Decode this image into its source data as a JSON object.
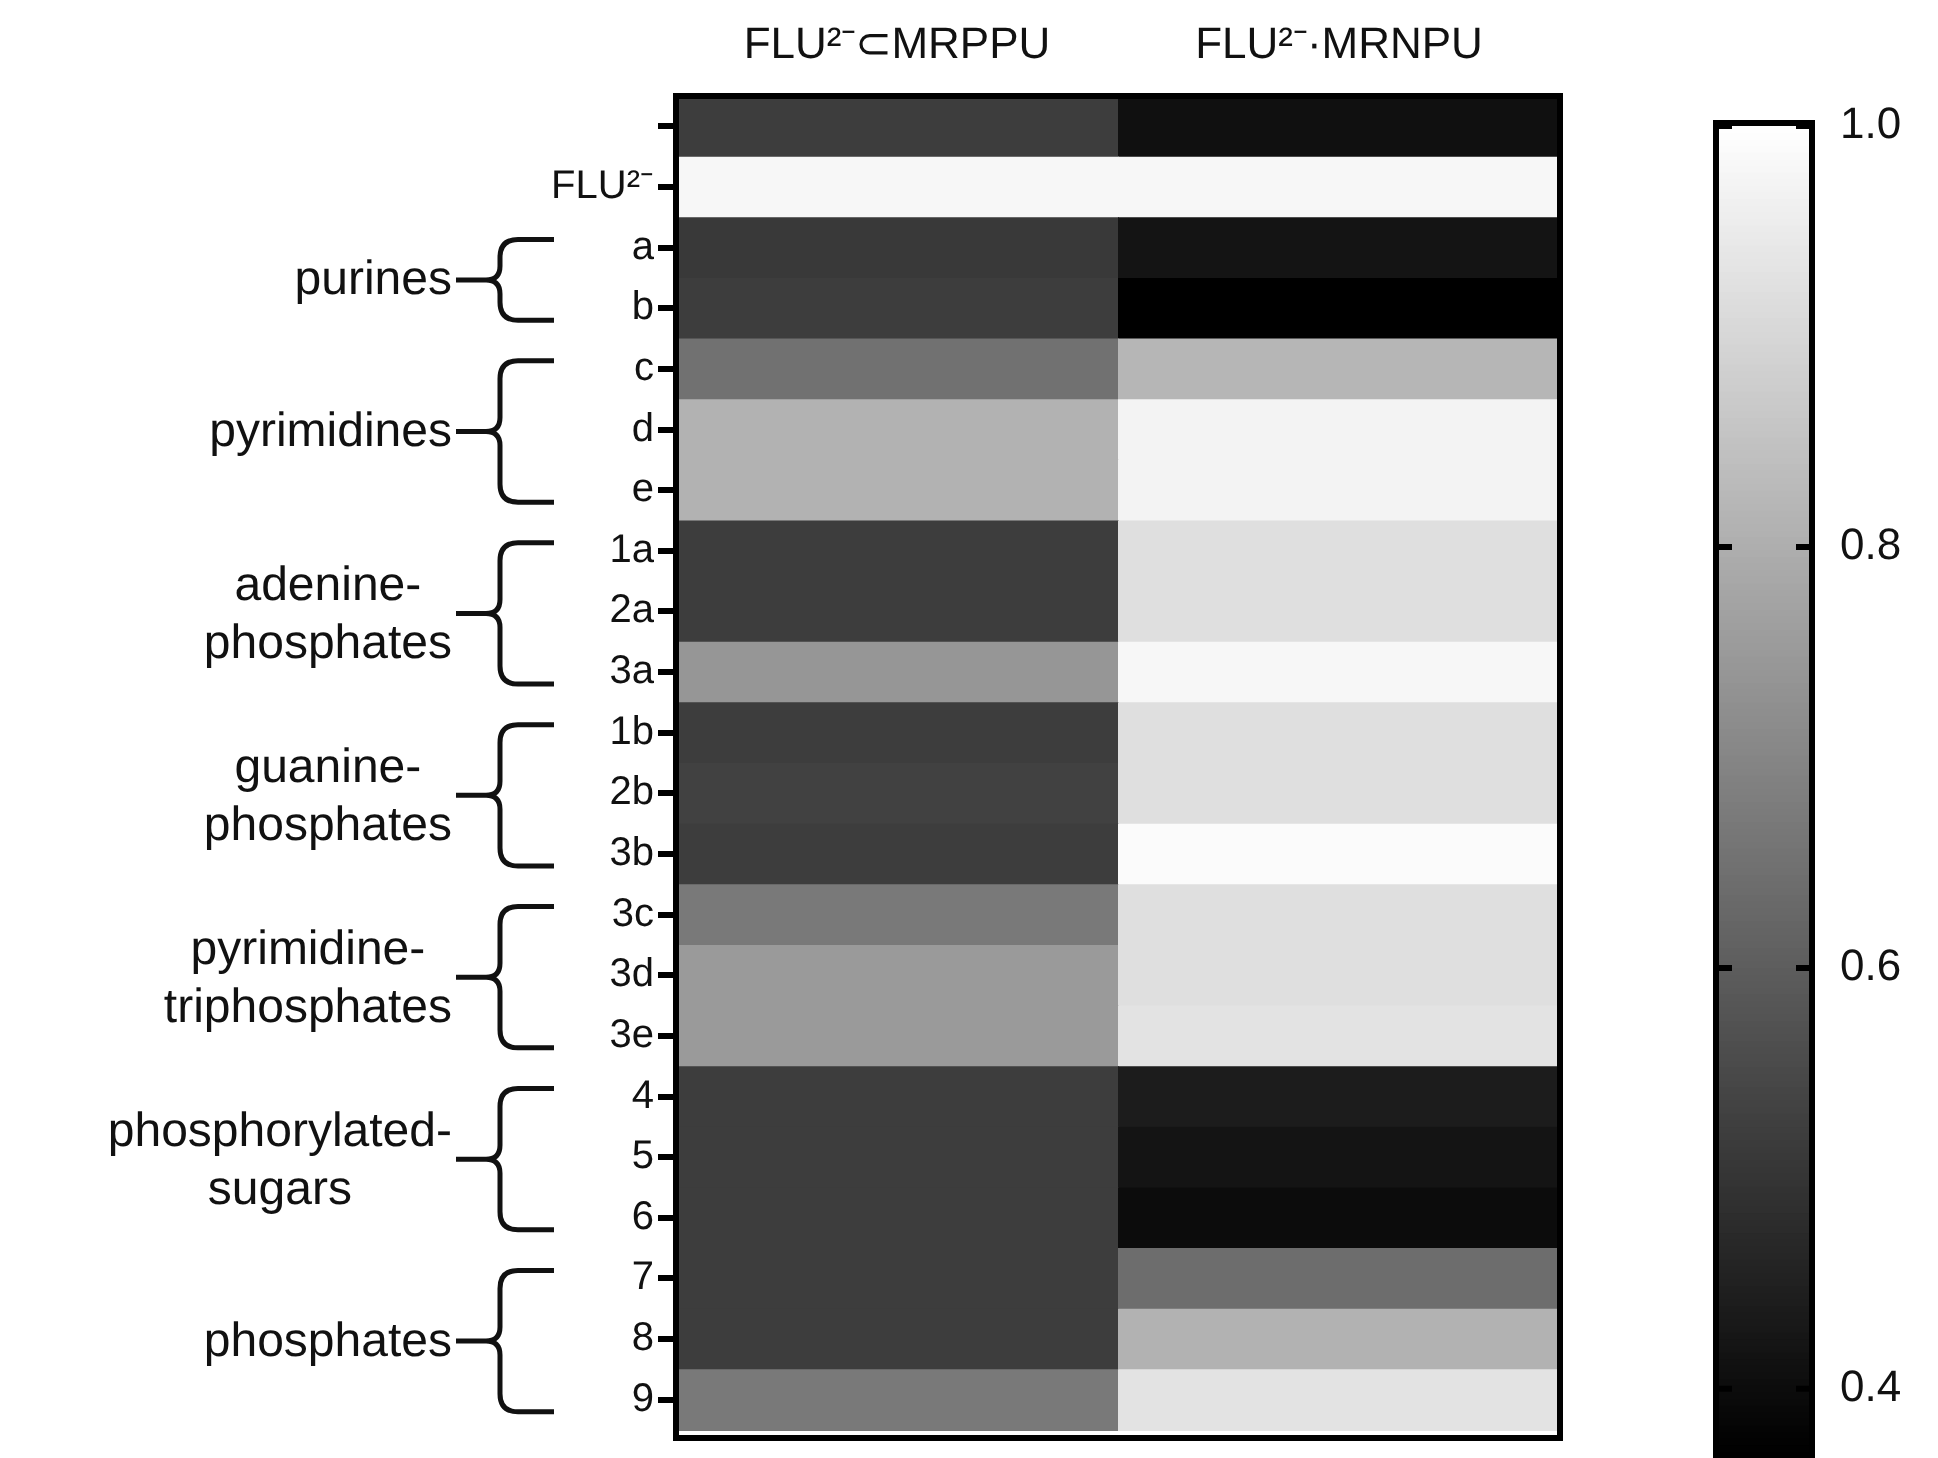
{
  "chart_data": {
    "type": "heatmap",
    "categories": [
      "FLU²⁻⊂MRPPU",
      "FLU²⁻·MRNPU"
    ],
    "y_categories": [
      null,
      "FLU²⁻",
      "a",
      "b",
      "c",
      "d",
      "e",
      "1a",
      "2a",
      "3a",
      "1b",
      "2b",
      "3b",
      "3c",
      "3d",
      "3e",
      "4",
      "5",
      "6",
      "7",
      "8",
      "9"
    ],
    "cells": [
      [
        0.52,
        0.41
      ],
      [
        0.98,
        0.98
      ],
      [
        0.51,
        0.42
      ],
      [
        0.52,
        0.37
      ],
      [
        0.65,
        0.82
      ],
      [
        0.81,
        0.97
      ],
      [
        0.81,
        0.97
      ],
      [
        0.52,
        0.92
      ],
      [
        0.52,
        0.92
      ],
      [
        0.74,
        0.98
      ],
      [
        0.52,
        0.92
      ],
      [
        0.53,
        0.92
      ],
      [
        0.52,
        0.99
      ],
      [
        0.67,
        0.92
      ],
      [
        0.75,
        0.92
      ],
      [
        0.75,
        0.93
      ],
      [
        0.52,
        0.44
      ],
      [
        0.52,
        0.42
      ],
      [
        0.52,
        0.4
      ],
      [
        0.52,
        0.64
      ],
      [
        0.52,
        0.81
      ],
      [
        0.67,
        0.93
      ]
    ],
    "clim": [
      0.37,
      1.0
    ],
    "cticks": [
      {
        "value": 1,
        "label": "1.0"
      },
      0.8,
      0.6,
      0.4
    ],
    "annotations": [
      "purines",
      "pyrimidines",
      "adenine-phosphates",
      "guanine-phosphates",
      "pyrimidine-triphosphates",
      "phosphorylated-sugars",
      "phosphates"
    ],
    "legend": false
  }
}
